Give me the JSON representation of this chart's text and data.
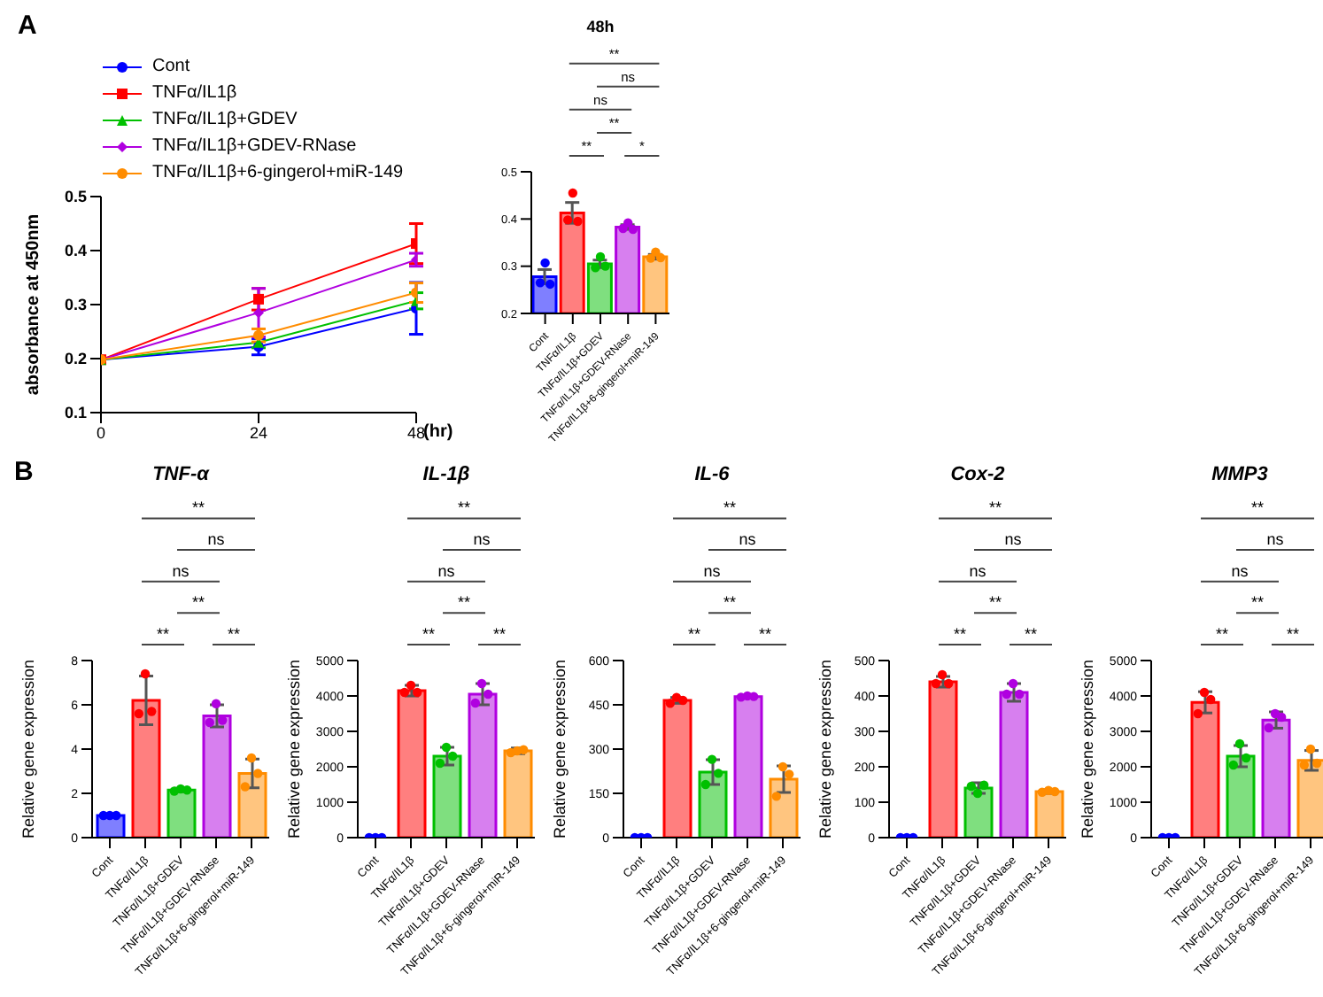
{
  "chart_data": [
    {
      "type": "line",
      "x": [
        0,
        24,
        48
      ],
      "xlim": [
        0,
        48
      ],
      "xticks": [
        0,
        24,
        48
      ],
      "ylim": [
        0.1,
        0.5
      ],
      "yticks": [
        0.1,
        0.2,
        0.3,
        0.4,
        0.5
      ],
      "xlabel": "(hr)",
      "ylabel": "absorbance at 450nm",
      "legend": "top left",
      "annotations": [
        "A"
      ],
      "series": [
        {
          "name": "Cont",
          "color": "#0000ff",
          "marker": "circle",
          "values": [
            0.198,
            0.222,
            0.293
          ],
          "errors": [
            null,
            0.015,
            0.048
          ]
        },
        {
          "name": "TNFα/IL1β",
          "color": "#ff0000",
          "marker": "square",
          "values": [
            0.198,
            0.31,
            0.413
          ],
          "errors": [
            null,
            0.02,
            0.037
          ]
        },
        {
          "name": "TNFα/IL1β+GDEV",
          "color": "#00c000",
          "marker": "triangle",
          "values": [
            0.198,
            0.23,
            0.307
          ],
          "errors": [
            null,
            0.01,
            0.015
          ]
        },
        {
          "name": "TNFα/IL1β+GDEV-RNase",
          "color": "#b000e0",
          "marker": "diamond",
          "values": [
            0.198,
            0.285,
            0.383
          ],
          "errors": [
            null,
            0.045,
            0.012
          ]
        },
        {
          "name": "TNFα/IL1β+6-gingerol+miR-149",
          "color": "#ff8c00",
          "marker": "circle",
          "values": [
            0.198,
            0.243,
            0.322
          ],
          "errors": [
            null,
            0.012,
            0.018
          ]
        }
      ]
    },
    {
      "type": "bar",
      "title": "48h",
      "categories": [
        "Cont",
        "TNFα/IL1β",
        "TNFα/IL1β+GDEV",
        "TNFα/IL1β+GDEV-RNase",
        "TNFα/IL1β+6-gingerol+miR-149"
      ],
      "ylim": [
        0.2,
        0.5
      ],
      "yticks": [
        0.2,
        0.3,
        0.4,
        0.5
      ],
      "annotations": [
        "**",
        "ns",
        "ns",
        "**",
        "**",
        "*"
      ],
      "series": [
        {
          "type": "bar",
          "values": [
            0.278,
            0.413,
            0.305,
            0.383,
            0.32
          ],
          "errors": [
            0.015,
            0.022,
            0.008,
            0.005,
            0.005
          ],
          "colors": [
            "#0000ff",
            "#ff0000",
            "#00c000",
            "#b000e0",
            "#ff8c00"
          ]
        },
        {
          "type": "scatter",
          "x": [
            "Cont",
            "Cont",
            "Cont",
            "TNFα/IL1β",
            "TNFα/IL1β",
            "TNFα/IL1β",
            "TNFα/IL1β+GDEV",
            "TNFα/IL1β+GDEV",
            "TNFα/IL1β+GDEV",
            "TNFα/IL1β+GDEV-RNase",
            "TNFα/IL1β+GDEV-RNase",
            "TNFα/IL1β+GDEV-RNase",
            "TNFα/IL1β+6-gingerol+miR-149",
            "TNFα/IL1β+6-gingerol+miR-149",
            "TNFα/IL1β+6-gingerol+miR-149"
          ],
          "values": [
            0.265,
            0.307,
            0.262,
            0.398,
            0.455,
            0.395,
            0.297,
            0.32,
            0.3,
            0.38,
            0.392,
            0.378,
            0.317,
            0.33,
            0.318
          ],
          "colors": [
            "#0000ff",
            "#0000ff",
            "#0000ff",
            "#ff0000",
            "#ff0000",
            "#ff0000",
            "#00c000",
            "#00c000",
            "#00c000",
            "#b000e0",
            "#b000e0",
            "#b000e0",
            "#ff8c00",
            "#ff8c00",
            "#ff8c00"
          ]
        }
      ]
    },
    {
      "type": "bar",
      "title": "TNF-α",
      "ylabel": "Relative gene expression",
      "categories": [
        "Cont",
        "TNFα/IL1β",
        "TNFα/IL1β+GDEV",
        "TNFα/IL1β+GDEV-RNase",
        "TNFα/IL1β+6-gingerol+miR-149"
      ],
      "ylim": [
        0,
        8
      ],
      "yticks": [
        0,
        2,
        4,
        6,
        8
      ],
      "annotations": [
        "**",
        "ns",
        "ns",
        "**",
        "**",
        "**",
        "B"
      ],
      "series": [
        {
          "type": "bar",
          "values": [
            1.0,
            6.2,
            2.15,
            5.5,
            2.9
          ],
          "errors": [
            0.03,
            1.1,
            0.08,
            0.5,
            0.65
          ],
          "colors": [
            "#0000ff",
            "#ff0000",
            "#00c000",
            "#b000e0",
            "#ff8c00"
          ]
        },
        {
          "type": "scatter",
          "x": [
            "Cont",
            "Cont",
            "Cont",
            "TNFα/IL1β",
            "TNFα/IL1β",
            "TNFα/IL1β",
            "TNFα/IL1β+GDEV",
            "TNFα/IL1β+GDEV",
            "TNFα/IL1β+GDEV",
            "TNFα/IL1β+GDEV-RNase",
            "TNFα/IL1β+GDEV-RNase",
            "TNFα/IL1β+GDEV-RNase",
            "TNFα/IL1β+6-gingerol+miR-149",
            "TNFα/IL1β+6-gingerol+miR-149",
            "TNFα/IL1β+6-gingerol+miR-149"
          ],
          "values": [
            1.0,
            1.0,
            1.0,
            5.6,
            7.4,
            5.7,
            2.1,
            2.2,
            2.15,
            5.2,
            6.05,
            5.3,
            2.3,
            3.6,
            2.9
          ],
          "colors": [
            "#0000ff",
            "#0000ff",
            "#0000ff",
            "#ff0000",
            "#ff0000",
            "#ff0000",
            "#00c000",
            "#00c000",
            "#00c000",
            "#b000e0",
            "#b000e0",
            "#b000e0",
            "#ff8c00",
            "#ff8c00",
            "#ff8c00"
          ]
        }
      ]
    },
    {
      "type": "bar",
      "title": "IL-1β",
      "ylabel": "Relative gene expression",
      "categories": [
        "Cont",
        "TNFα/IL1β",
        "TNFα/IL1β+GDEV",
        "TNFα/IL1β+GDEV-RNase",
        "TNFα/IL1β+6-gingerol+miR-149"
      ],
      "ylim": [
        0,
        5000
      ],
      "yticks": [
        0,
        1000,
        2000,
        3000,
        4000,
        5000
      ],
      "annotations": [
        "**",
        "ns",
        "ns",
        "**",
        "**",
        "**"
      ],
      "series": [
        {
          "type": "bar",
          "values": [
            0,
            4150,
            2300,
            4050,
            2450
          ],
          "errors": [
            null,
            150,
            250,
            300,
            80
          ],
          "colors": [
            "#0000ff",
            "#ff0000",
            "#00c000",
            "#b000e0",
            "#ff8c00"
          ]
        },
        {
          "type": "scatter",
          "x": [
            "Cont",
            "Cont",
            "Cont",
            "TNFα/IL1β",
            "TNFα/IL1β",
            "TNFα/IL1β",
            "TNFα/IL1β+GDEV",
            "TNFα/IL1β+GDEV",
            "TNFα/IL1β+GDEV",
            "TNFα/IL1β+GDEV-RNase",
            "TNFα/IL1β+GDEV-RNase",
            "TNFα/IL1β+GDEV-RNase",
            "TNFα/IL1β+6-gingerol+miR-149",
            "TNFα/IL1β+6-gingerol+miR-149",
            "TNFα/IL1β+6-gingerol+miR-149"
          ],
          "values": [
            0,
            0,
            0,
            4100,
            4300,
            4100,
            2100,
            2550,
            2300,
            3800,
            4350,
            4050,
            2400,
            2450,
            2480
          ],
          "colors": [
            "#0000ff",
            "#0000ff",
            "#0000ff",
            "#ff0000",
            "#ff0000",
            "#ff0000",
            "#00c000",
            "#00c000",
            "#00c000",
            "#b000e0",
            "#b000e0",
            "#b000e0",
            "#ff8c00",
            "#ff8c00",
            "#ff8c00"
          ]
        }
      ]
    },
    {
      "type": "bar",
      "title": "IL-6",
      "ylabel": "Relative gene expression",
      "categories": [
        "Cont",
        "TNFα/IL1β",
        "TNFα/IL1β+GDEV",
        "TNFα/IL1β+GDEV-RNase",
        "TNFα/IL1β+6-gingerol+miR-149"
      ],
      "ylim": [
        0,
        600
      ],
      "yticks": [
        0,
        150,
        300,
        450,
        600
      ],
      "annotations": [
        "**",
        "ns",
        "ns",
        "**",
        "**",
        "**"
      ],
      "series": [
        {
          "type": "bar",
          "values": [
            0,
            465,
            222,
            478,
            198
          ],
          "errors": [
            null,
            10,
            42,
            4,
            45
          ],
          "colors": [
            "#0000ff",
            "#ff0000",
            "#00c000",
            "#b000e0",
            "#ff8c00"
          ]
        },
        {
          "type": "scatter",
          "x": [
            "Cont",
            "Cont",
            "Cont",
            "TNFα/IL1β",
            "TNFα/IL1β",
            "TNFα/IL1β",
            "TNFα/IL1β+GDEV",
            "TNFα/IL1β+GDEV",
            "TNFα/IL1β+GDEV",
            "TNFα/IL1β+GDEV-RNase",
            "TNFα/IL1β+GDEV-RNase",
            "TNFα/IL1β+GDEV-RNase",
            "TNFα/IL1β+6-gingerol+miR-149",
            "TNFα/IL1β+6-gingerol+miR-149",
            "TNFα/IL1β+6-gingerol+miR-149"
          ],
          "values": [
            0,
            0,
            0,
            455,
            475,
            465,
            180,
            265,
            218,
            476,
            480,
            478,
            140,
            240,
            215
          ],
          "colors": [
            "#0000ff",
            "#0000ff",
            "#0000ff",
            "#ff0000",
            "#ff0000",
            "#ff0000",
            "#00c000",
            "#00c000",
            "#00c000",
            "#b000e0",
            "#b000e0",
            "#b000e0",
            "#ff8c00",
            "#ff8c00",
            "#ff8c00"
          ]
        }
      ]
    },
    {
      "type": "bar",
      "title": "Cox-2",
      "ylabel": "Relative gene expression",
      "categories": [
        "Cont",
        "TNFα/IL1β",
        "TNFα/IL1β+GDEV",
        "TNFα/IL1β+GDEV-RNase",
        "TNFα/IL1β+6-gingerol+miR-149"
      ],
      "ylim": [
        0,
        500
      ],
      "yticks": [
        0,
        100,
        200,
        300,
        400,
        500
      ],
      "annotations": [
        "**",
        "ns",
        "ns",
        "**",
        "**",
        "**"
      ],
      "series": [
        {
          "type": "bar",
          "values": [
            0,
            440,
            140,
            410,
            130
          ],
          "errors": [
            null,
            15,
            15,
            25,
            5
          ],
          "colors": [
            "#0000ff",
            "#ff0000",
            "#00c000",
            "#b000e0",
            "#ff8c00"
          ]
        },
        {
          "type": "scatter",
          "x": [
            "Cont",
            "Cont",
            "Cont",
            "TNFα/IL1β",
            "TNFα/IL1β",
            "TNFα/IL1β",
            "TNFα/IL1β+GDEV",
            "TNFα/IL1β+GDEV",
            "TNFα/IL1β+GDEV",
            "TNFα/IL1β+GDEV-RNase",
            "TNFα/IL1β+GDEV-RNase",
            "TNFα/IL1β+GDEV-RNase",
            "TNFα/IL1β+6-gingerol+miR-149",
            "TNFα/IL1β+6-gingerol+miR-149",
            "TNFα/IL1β+6-gingerol+miR-149"
          ],
          "values": [
            0,
            0,
            0,
            435,
            460,
            435,
            145,
            125,
            148,
            405,
            435,
            405,
            128,
            133,
            130
          ],
          "colors": [
            "#0000ff",
            "#0000ff",
            "#0000ff",
            "#ff0000",
            "#ff0000",
            "#ff0000",
            "#00c000",
            "#00c000",
            "#00c000",
            "#b000e0",
            "#b000e0",
            "#b000e0",
            "#ff8c00",
            "#ff8c00",
            "#ff8c00"
          ]
        }
      ]
    },
    {
      "type": "bar",
      "title": "MMP3",
      "ylabel": "Relative gene expression",
      "categories": [
        "Cont",
        "TNFα/IL1β",
        "TNFα/IL1β+GDEV",
        "TNFα/IL1β+GDEV-RNase",
        "TNFα/IL1β+6-gingerol+miR-149"
      ],
      "ylim": [
        0,
        5000
      ],
      "yticks": [
        0,
        1000,
        2000,
        3000,
        4000,
        5000
      ],
      "annotations": [
        "**",
        "ns",
        "ns",
        "**",
        "**",
        "**"
      ],
      "series": [
        {
          "type": "bar",
          "values": [
            0,
            3820,
            2300,
            3320,
            2180
          ],
          "errors": [
            null,
            300,
            300,
            230,
            280
          ],
          "colors": [
            "#0000ff",
            "#ff0000",
            "#00c000",
            "#b000e0",
            "#ff8c00"
          ]
        },
        {
          "type": "scatter",
          "x": [
            "Cont",
            "Cont",
            "Cont",
            "TNFα/IL1β",
            "TNFα/IL1β",
            "TNFα/IL1β",
            "TNFα/IL1β+GDEV",
            "TNFα/IL1β+GDEV",
            "TNFα/IL1β+GDEV",
            "TNFα/IL1β+GDEV-RNase",
            "TNFα/IL1β+GDEV-RNase",
            "TNFα/IL1β+GDEV-RNase",
            "TNFα/IL1β+6-gingerol+miR-149",
            "TNFα/IL1β+6-gingerol+miR-149",
            "TNFα/IL1β+6-gingerol+miR-149"
          ],
          "values": [
            0,
            0,
            0,
            3500,
            4100,
            3900,
            2050,
            2650,
            2250,
            3100,
            3500,
            3400,
            2050,
            2500,
            2100
          ],
          "colors": [
            "#0000ff",
            "#0000ff",
            "#0000ff",
            "#ff0000",
            "#ff0000",
            "#ff0000",
            "#00c000",
            "#00c000",
            "#00c000",
            "#b000e0",
            "#b000e0",
            "#b000e0",
            "#ff8c00",
            "#ff8c00",
            "#ff8c00"
          ]
        }
      ]
    }
  ]
}
